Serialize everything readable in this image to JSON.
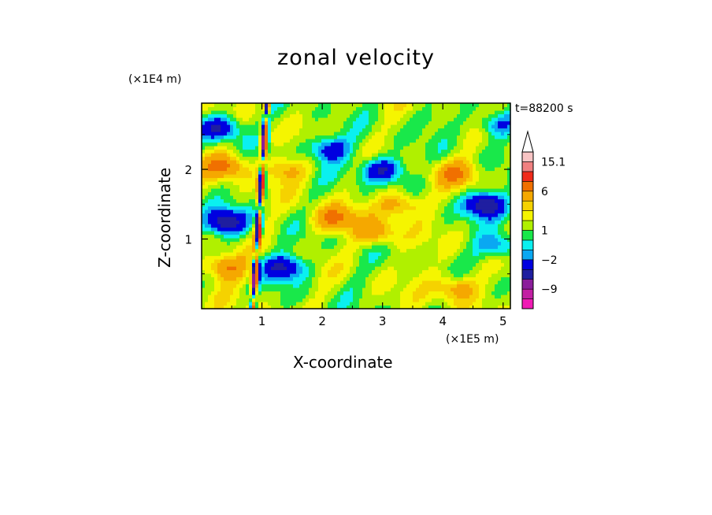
{
  "chart_data": {
    "type": "heatmap",
    "title": "zonal velocity",
    "xlabel": "X-coordinate",
    "ylabel": "Z-coordinate",
    "x_unit": "(×1E5 m)",
    "y_unit": "(×1E4 m)",
    "time_label": "t=88200 s",
    "xlim": [
      0,
      5.12
    ],
    "ylim": [
      0,
      2.95
    ],
    "x_ticks": [
      1,
      2,
      3,
      4,
      5
    ],
    "y_ticks": [
      1,
      2
    ],
    "colorbar": {
      "levels": [
        -15,
        -12,
        -9,
        -6,
        -4,
        -2,
        -1,
        0,
        1,
        2,
        3,
        4,
        6,
        9,
        12,
        15.1
      ],
      "colors": [
        "#f01ab4",
        "#c21fa3",
        "#8b1e9b",
        "#1f1ea0",
        "#0000e0",
        "#0aa8f2",
        "#0af0f0",
        "#19e84a",
        "#b0f000",
        "#f5f500",
        "#f5d200",
        "#f5a800",
        "#f07000",
        "#f02a1a",
        "#f08080",
        "#f8c4c4"
      ],
      "tick_labels": [
        "15.1",
        "6",
        "1",
        "−2",
        "−9"
      ],
      "tick_values": [
        15.1,
        6,
        1,
        -2,
        -9
      ],
      "extend_max": true
    },
    "grid": false,
    "legend": "colorbar-right",
    "features": [
      {
        "x": 0.3,
        "z": 2.6,
        "value": -6
      },
      {
        "x": 2.1,
        "z": 2.3,
        "value": -5
      },
      {
        "x": 3.0,
        "z": 2.0,
        "value": -6
      },
      {
        "x": 4.7,
        "z": 1.5,
        "value": -7
      },
      {
        "x": 4.9,
        "z": 2.65,
        "value": -4
      },
      {
        "x": 0.4,
        "z": 1.25,
        "value": -7
      },
      {
        "x": 2.2,
        "z": 1.3,
        "value": 5
      },
      {
        "x": 2.9,
        "z": 1.1,
        "value": 4
      },
      {
        "x": 3.3,
        "z": 1.5,
        "value": 4
      },
      {
        "x": 0.4,
        "z": 2.05,
        "value": 5
      },
      {
        "x": 4.2,
        "z": 1.95,
        "value": 4
      },
      {
        "x": 0.4,
        "z": 0.6,
        "value": 5
      },
      {
        "x": 1.4,
        "z": 2.0,
        "value": 3
      },
      {
        "x": 2.5,
        "z": 0.35,
        "value": -0.5
      },
      {
        "x": 3.6,
        "z": 0.55,
        "value": 0.5
      },
      {
        "x": 4.2,
        "z": 0.3,
        "value": 4
      },
      {
        "x": 1.35,
        "z": 0.6,
        "value": -6
      },
      {
        "x": 4.9,
        "z": 0.9,
        "value": -4
      },
      {
        "x": 3.8,
        "z": 2.75,
        "value": -1
      }
    ]
  }
}
